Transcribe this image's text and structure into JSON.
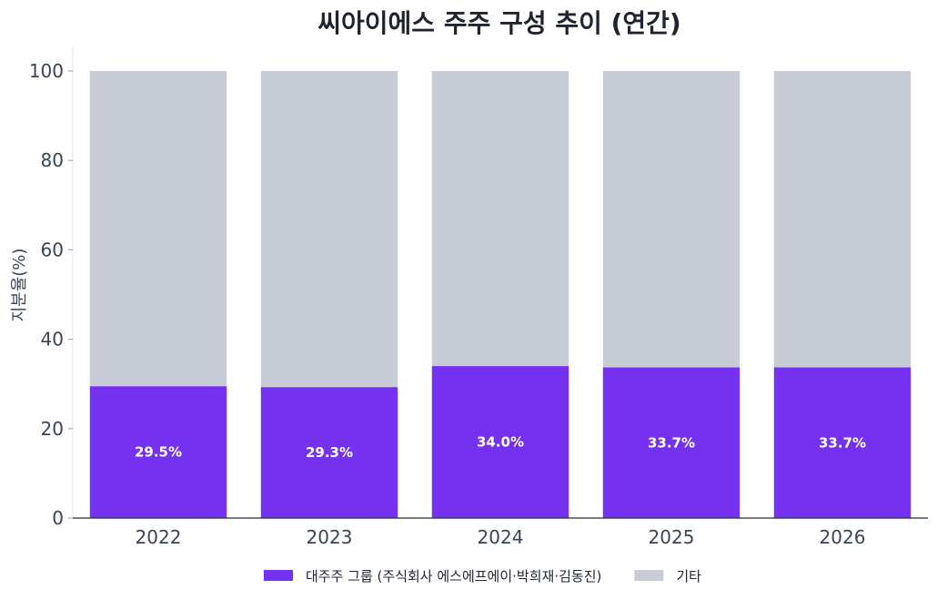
{
  "chart_data": {
    "type": "bar",
    "stacked": true,
    "title": "씨아이에스 주주 구성 추이 (연간)",
    "xlabel": "",
    "ylabel": "지분율(%)",
    "ylim": [
      0,
      100
    ],
    "yticks": [
      0,
      20,
      40,
      60,
      80,
      100
    ],
    "categories": [
      "2022",
      "2023",
      "2024",
      "2025",
      "2026"
    ],
    "series": [
      {
        "name": "대주주 그룹 (주식회사 에스에프에이·박희재·김동진)",
        "values": [
          29.5,
          29.3,
          34.0,
          33.7,
          33.7
        ],
        "labels": [
          "29.5%",
          "29.3%",
          "34.0%",
          "33.7%",
          "33.7%"
        ],
        "color": "#7432f0"
      },
      {
        "name": "기타",
        "values": [
          70.5,
          70.7,
          66.0,
          66.3,
          66.3
        ],
        "color": "#c8ccd6"
      }
    ],
    "grid": false,
    "legend_position": "bottom-center"
  }
}
